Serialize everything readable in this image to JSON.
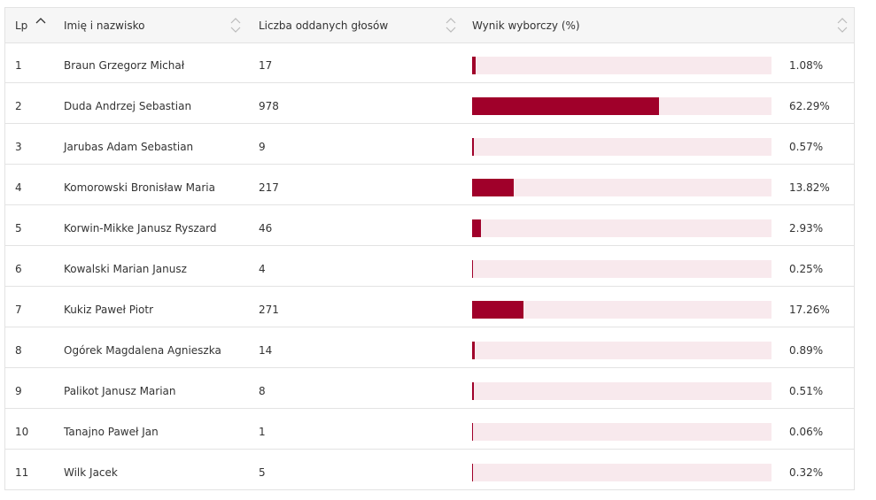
{
  "table": {
    "headers": [
      "Lp",
      "Imię i nazwisko",
      "Liczba oddanych głosów",
      "Wynik wyborczy (%)"
    ],
    "xlim": [
      0,
      100
    ],
    "rows": [
      {
        "lp": "1",
        "name": "Braun Grzegorz Michał",
        "votes": "17",
        "result": {
          "value": 1.08,
          "label": "1.08%"
        }
      },
      {
        "lp": "2",
        "name": "Duda Andrzej Sebastian",
        "votes": "978",
        "result": {
          "value": 62.29,
          "label": "62.29%"
        }
      },
      {
        "lp": "3",
        "name": "Jarubas Adam Sebastian",
        "votes": "9",
        "result": {
          "value": 0.57,
          "label": "0.57%"
        }
      },
      {
        "lp": "4",
        "name": "Komorowski Bronisław Maria",
        "votes": "217",
        "result": {
          "value": 13.82,
          "label": "13.82%"
        }
      },
      {
        "lp": "5",
        "name": "Korwin-Mikke Janusz Ryszard",
        "votes": "46",
        "result": {
          "value": 2.93,
          "label": "2.93%"
        }
      },
      {
        "lp": "6",
        "name": "Kowalski Marian Janusz",
        "votes": "4",
        "result": {
          "value": 0.25,
          "label": "0.25%"
        }
      },
      {
        "lp": "7",
        "name": "Kukiz Paweł Piotr",
        "votes": "271",
        "result": {
          "value": 17.26,
          "label": "17.26%"
        }
      },
      {
        "lp": "8",
        "name": "Ogórek Magdalena Agnieszka",
        "votes": "14",
        "result": {
          "value": 0.89,
          "label": "0.89%"
        }
      },
      {
        "lp": "9",
        "name": "Palikot Janusz Marian",
        "votes": "8",
        "result": {
          "value": 0.51,
          "label": "0.51%"
        }
      },
      {
        "lp": "10",
        "name": "Tanajno Paweł Jan",
        "votes": "1",
        "result": {
          "value": 0.06,
          "label": "0.06%"
        }
      },
      {
        "lp": "11",
        "name": "Wilk Jacek",
        "votes": "5",
        "result": {
          "value": 0.32,
          "label": "0.32%"
        }
      }
    ]
  }
}
